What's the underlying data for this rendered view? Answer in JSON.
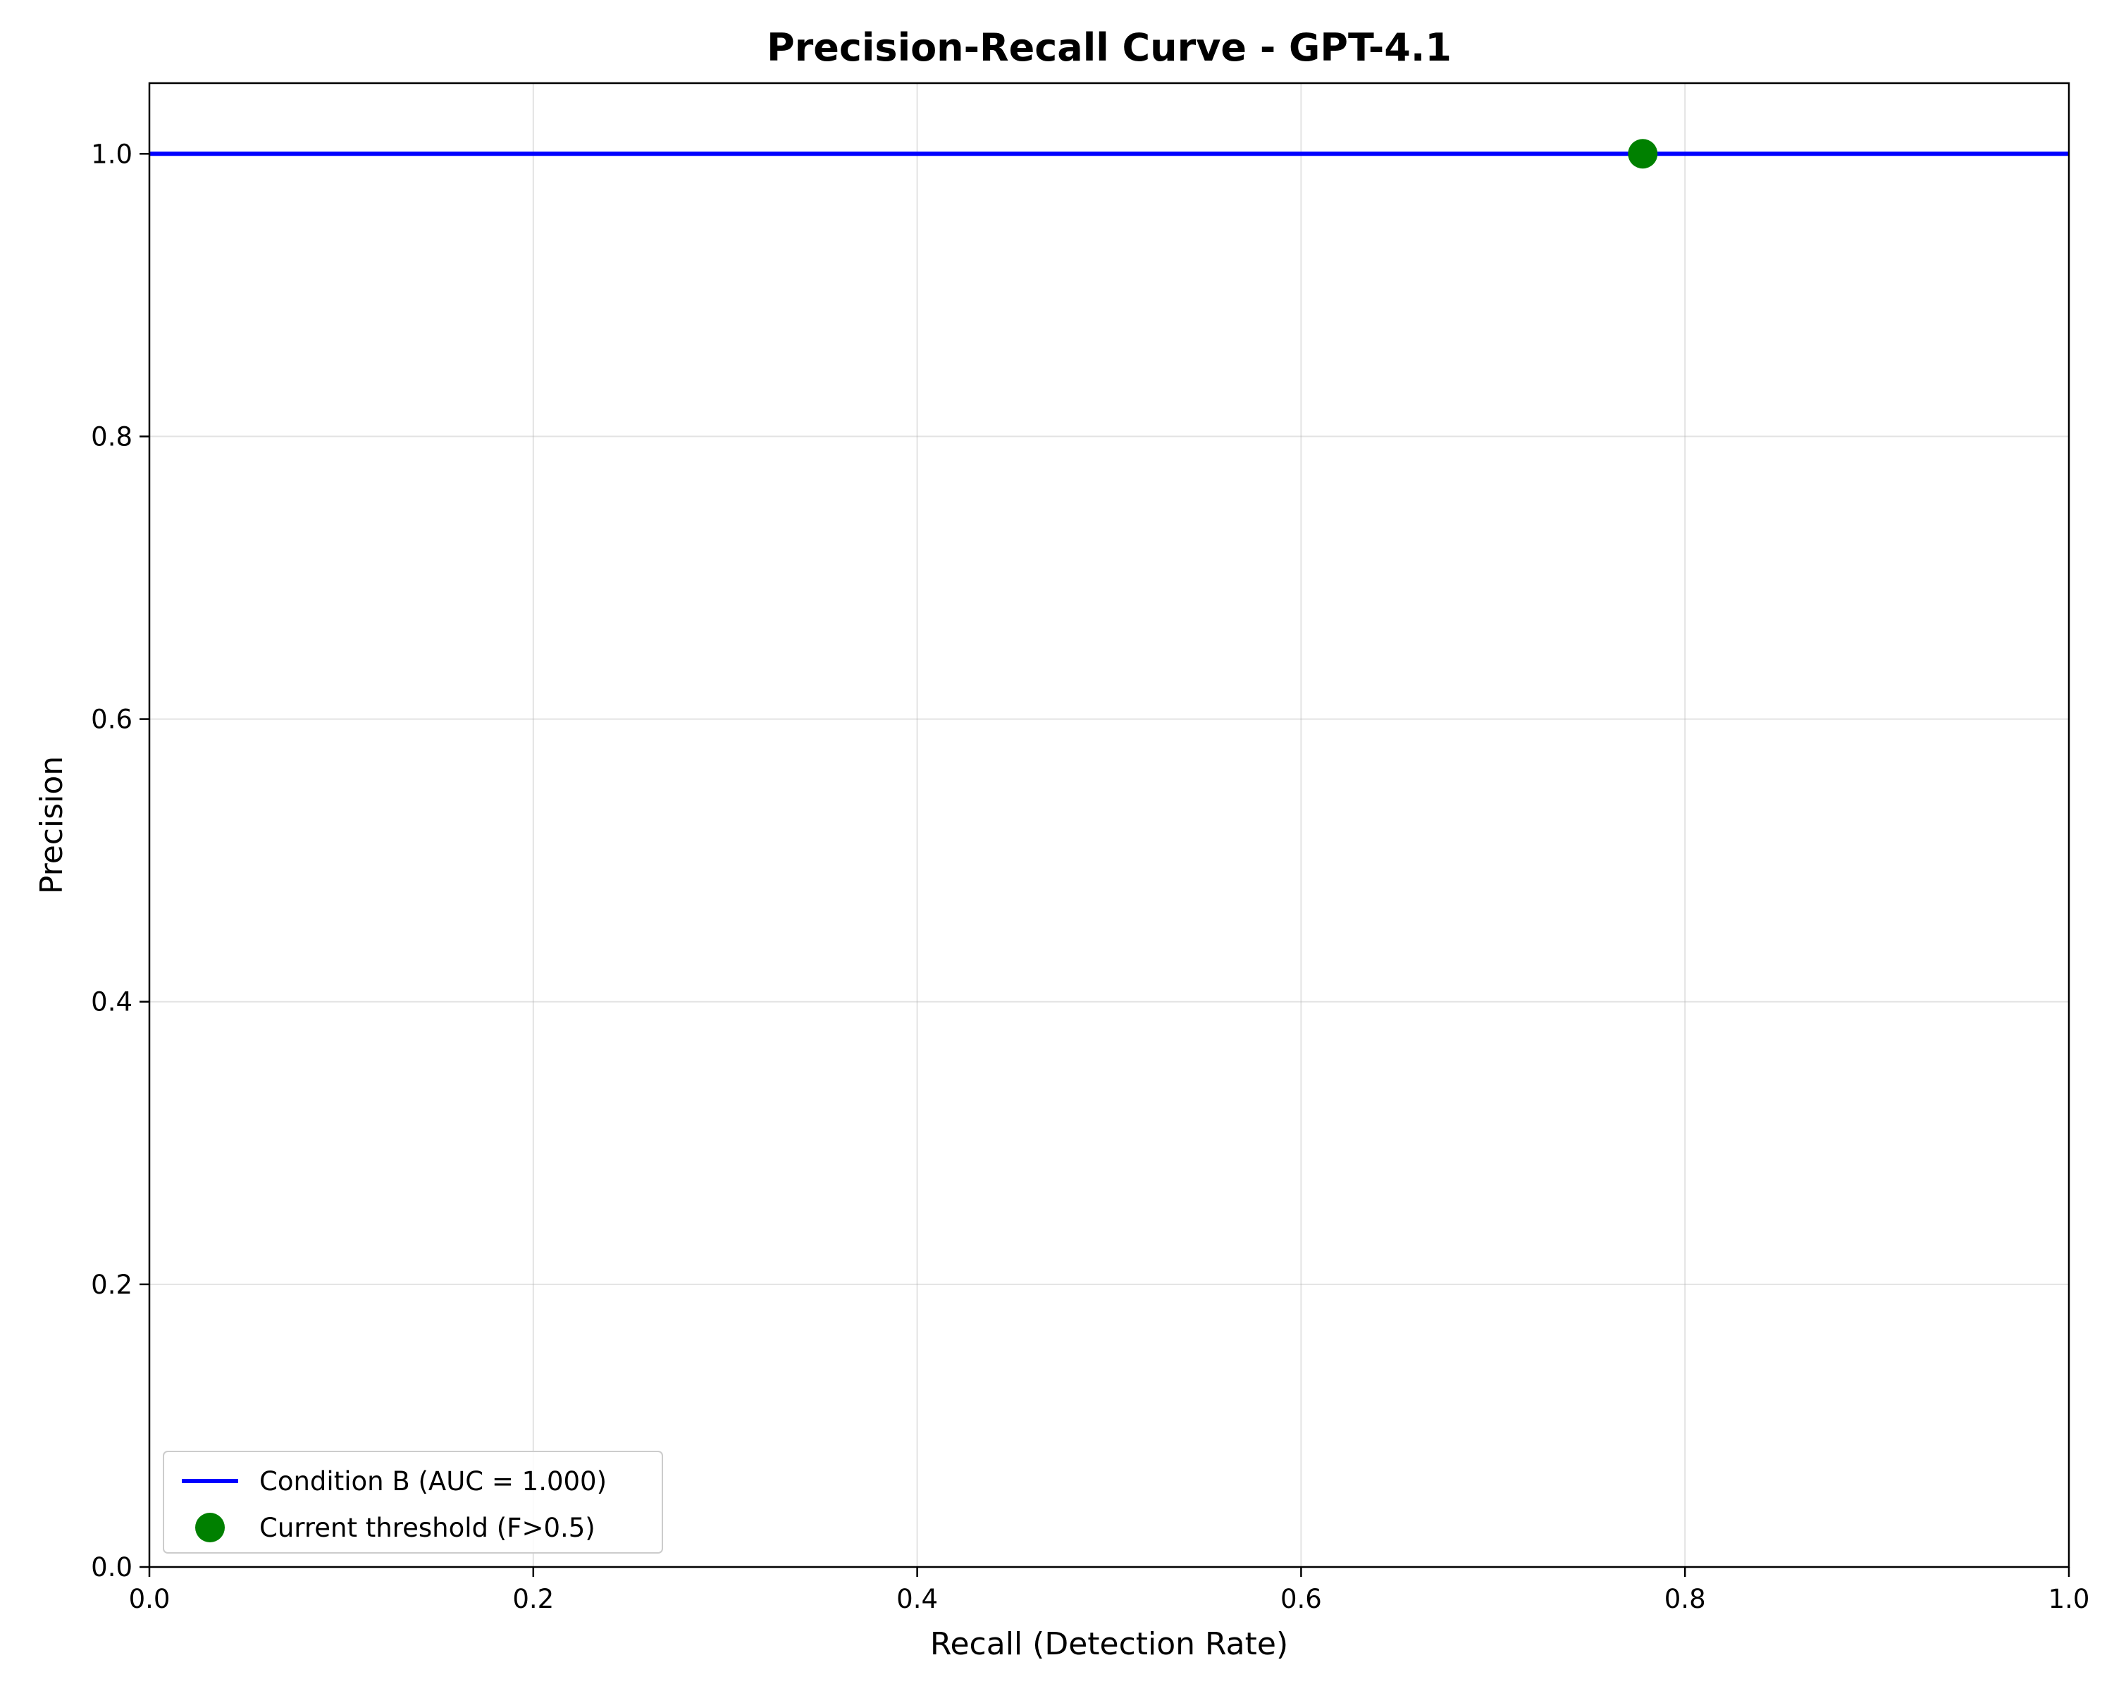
{
  "chart_data": {
    "type": "line",
    "title": "Precision-Recall Curve - GPT-4.1",
    "xlabel": "Recall (Detection Rate)",
    "ylabel": "Precision",
    "xlim": [
      0.0,
      1.0
    ],
    "ylim": [
      0.0,
      1.05
    ],
    "x_ticks": [
      "0.0",
      "0.2",
      "0.4",
      "0.6",
      "0.8",
      "1.0"
    ],
    "y_ticks": [
      "0.0",
      "0.2",
      "0.4",
      "0.6",
      "0.8",
      "1.0"
    ],
    "grid": true,
    "legend_position": "lower-left",
    "series": [
      {
        "name": "Condition B (AUC = 1.000)",
        "type": "line",
        "color": "#0000ff",
        "x": [
          0.0,
          1.0
        ],
        "y": [
          1.0,
          1.0
        ]
      },
      {
        "name": "Current threshold (F>0.5)",
        "type": "scatter",
        "color": "#008000",
        "x": [
          0.778
        ],
        "y": [
          1.0
        ]
      }
    ]
  }
}
